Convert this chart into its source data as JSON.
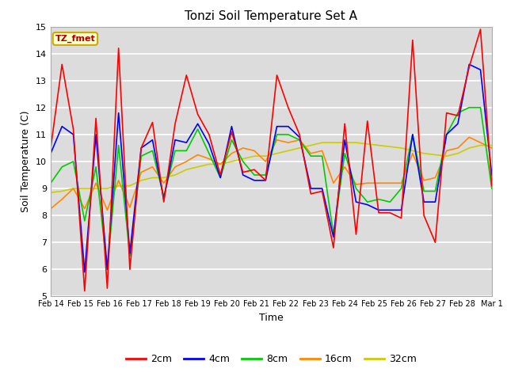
{
  "title": "Tonzi Soil Temperature Set A",
  "xlabel": "Time",
  "ylabel": "Soil Temperature (C)",
  "ylim": [
    5.0,
    15.0
  ],
  "yticks": [
    5.0,
    6.0,
    7.0,
    8.0,
    9.0,
    10.0,
    11.0,
    12.0,
    13.0,
    14.0,
    15.0
  ],
  "bg_color": "#dcdcdc",
  "fig_color": "#ffffff",
  "annotation_text": "TZ_fmet",
  "annotation_bg": "#ffffcc",
  "annotation_border": "#ccaa00",
  "colors": {
    "2cm": "#ff0000",
    "4cm": "#0000ff",
    "8cm": "#00cc00",
    "16cm": "#ff8800",
    "32cm": "#cccc00"
  },
  "linewidth": 1.2,
  "x_labels": [
    "Feb 14",
    "Feb 15",
    "Feb 16",
    "Feb 17",
    "Feb 18",
    "Feb 19",
    "Feb 20",
    "Feb 21",
    "Feb 22",
    "Feb 23",
    "Feb 24",
    "Feb 25",
    "Feb 26",
    "Feb 27",
    "Feb 28",
    "Mar 1"
  ],
  "series": {
    "2cm": [
      10.5,
      13.6,
      11.2,
      5.2,
      11.6,
      5.3,
      14.2,
      6.0,
      10.5,
      11.45,
      8.5,
      11.4,
      13.2,
      11.75,
      11.0,
      9.5,
      11.1,
      9.6,
      9.7,
      9.3,
      13.2,
      12.0,
      11.0,
      8.8,
      8.9,
      6.8,
      11.4,
      7.3,
      11.5,
      8.1,
      8.1,
      7.9,
      14.5,
      8.0,
      7.0,
      11.8,
      11.7,
      13.5,
      14.9,
      9.1
    ],
    "4cm": [
      10.3,
      11.3,
      11.0,
      5.9,
      11.0,
      6.0,
      11.8,
      6.6,
      10.5,
      10.8,
      8.6,
      10.8,
      10.7,
      11.4,
      10.65,
      9.4,
      11.3,
      9.5,
      9.3,
      9.3,
      11.3,
      11.3,
      10.9,
      9.0,
      9.0,
      7.2,
      10.8,
      8.5,
      8.4,
      8.2,
      8.2,
      8.2,
      11.0,
      8.5,
      8.5,
      11.0,
      11.4,
      13.6,
      13.4,
      9.5
    ],
    "8cm": [
      9.2,
      9.8,
      10.0,
      7.8,
      9.8,
      6.0,
      10.6,
      6.5,
      10.2,
      10.4,
      8.7,
      10.4,
      10.4,
      11.2,
      10.3,
      9.4,
      10.8,
      10.0,
      9.5,
      9.5,
      11.0,
      11.0,
      10.8,
      10.2,
      10.2,
      7.3,
      10.3,
      9.0,
      8.5,
      8.6,
      8.5,
      9.0,
      11.0,
      8.9,
      8.9,
      11.0,
      11.8,
      12.0,
      12.0,
      9.0
    ],
    "16cm": [
      8.25,
      8.6,
      9.0,
      8.25,
      9.2,
      8.2,
      9.3,
      8.3,
      9.6,
      9.8,
      9.2,
      9.8,
      10.0,
      10.25,
      10.1,
      9.9,
      10.3,
      10.5,
      10.4,
      10.0,
      10.8,
      10.7,
      10.8,
      10.3,
      10.4,
      9.2,
      9.8,
      9.15,
      9.2,
      9.2,
      9.2,
      9.2,
      10.3,
      9.3,
      9.4,
      10.4,
      10.5,
      10.9,
      10.7,
      10.5
    ],
    "32cm": [
      8.85,
      8.9,
      9.0,
      9.0,
      9.0,
      9.0,
      9.1,
      9.1,
      9.3,
      9.4,
      9.4,
      9.5,
      9.7,
      9.8,
      9.9,
      9.9,
      10.0,
      10.1,
      10.2,
      10.2,
      10.3,
      10.4,
      10.5,
      10.6,
      10.7,
      10.7,
      10.7,
      10.7,
      10.65,
      10.6,
      10.55,
      10.5,
      10.4,
      10.3,
      10.25,
      10.2,
      10.3,
      10.5,
      10.6,
      10.6
    ]
  }
}
